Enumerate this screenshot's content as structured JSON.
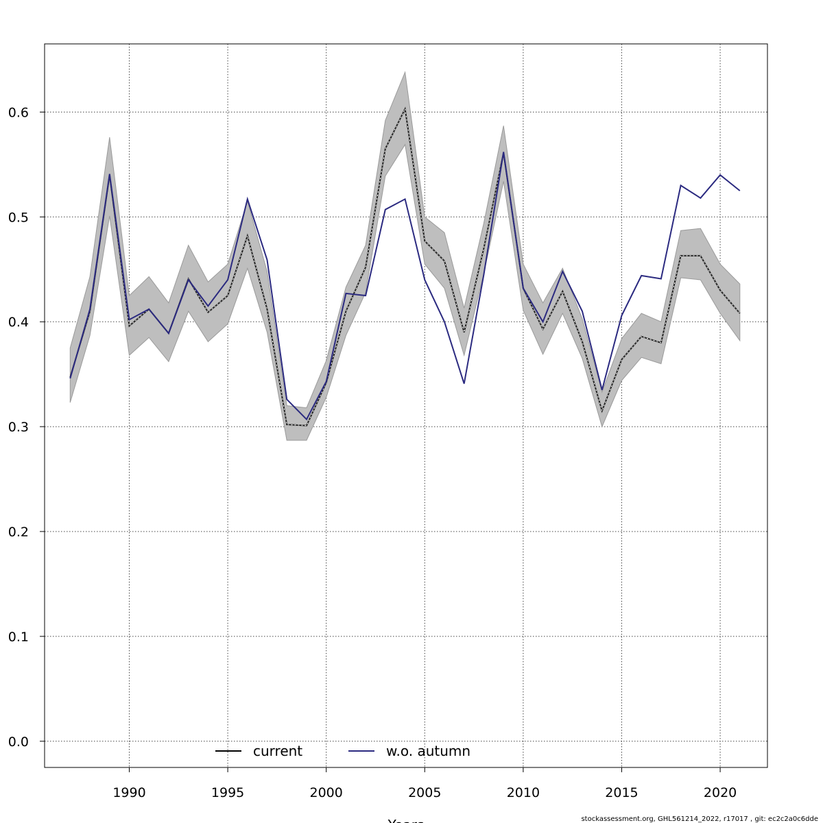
{
  "chart_data": {
    "type": "line",
    "title": "",
    "xlabel": "Years",
    "ylabel": "",
    "xlim": [
      1985.7,
      2022.4
    ],
    "ylim": [
      -0.025,
      0.665
    ],
    "xticks": [
      1990,
      1995,
      2000,
      2005,
      2010,
      2015,
      2020
    ],
    "yticks": [
      0.0,
      0.1,
      0.2,
      0.3,
      0.4,
      0.5,
      0.6
    ],
    "ytick_labels": [
      "0.0",
      "0.1",
      "0.2",
      "0.3",
      "0.4",
      "0.5",
      "0.6"
    ],
    "grid": true,
    "legend_position": "bottom-center",
    "x": [
      1987,
      1988,
      1989,
      1990,
      1991,
      1992,
      1993,
      1994,
      1995,
      1996,
      1997,
      1998,
      1999,
      2000,
      2001,
      2002,
      2003,
      2004,
      2005,
      2006,
      2007,
      2008,
      2009,
      2010,
      2011,
      2012,
      2013,
      2014,
      2015,
      2016,
      2017,
      2018,
      2019,
      2020,
      2021
    ],
    "series": [
      {
        "name": "current",
        "color": "#222222",
        "values": [
          0.347,
          0.41,
          0.54,
          0.396,
          0.412,
          0.389,
          0.441,
          0.409,
          0.425,
          0.482,
          0.412,
          0.302,
          0.301,
          0.342,
          0.41,
          0.452,
          0.565,
          0.603,
          0.477,
          0.458,
          0.39,
          0.47,
          0.561,
          0.432,
          0.393,
          0.429,
          0.381,
          0.315,
          0.364,
          0.386,
          0.38,
          0.463,
          0.463,
          0.43,
          0.408
        ],
        "lower": [
          0.323,
          0.387,
          0.501,
          0.368,
          0.385,
          0.362,
          0.41,
          0.381,
          0.398,
          0.451,
          0.39,
          0.287,
          0.287,
          0.328,
          0.387,
          0.428,
          0.539,
          0.569,
          0.455,
          0.432,
          0.368,
          0.446,
          0.534,
          0.411,
          0.369,
          0.408,
          0.365,
          0.3,
          0.344,
          0.366,
          0.36,
          0.442,
          0.44,
          0.408,
          0.382
        ],
        "upper": [
          0.375,
          0.443,
          0.576,
          0.425,
          0.443,
          0.418,
          0.473,
          0.438,
          0.455,
          0.515,
          0.448,
          0.32,
          0.318,
          0.363,
          0.433,
          0.473,
          0.592,
          0.638,
          0.5,
          0.485,
          0.413,
          0.494,
          0.587,
          0.455,
          0.418,
          0.451,
          0.403,
          0.333,
          0.384,
          0.408,
          0.4,
          0.487,
          0.489,
          0.455,
          0.436
        ]
      },
      {
        "name": "w.o. autumn",
        "color": "#2b2a80",
        "values": [
          0.346,
          0.412,
          0.541,
          0.402,
          0.412,
          0.389,
          0.44,
          0.415,
          0.44,
          0.517,
          0.459,
          0.326,
          0.307,
          0.343,
          0.427,
          0.425,
          0.507,
          0.517,
          0.44,
          0.4,
          0.341,
          0.445,
          0.562,
          0.432,
          0.4,
          0.448,
          0.41,
          0.335,
          0.406,
          0.444,
          0.441,
          0.53,
          0.518,
          0.54,
          0.525
        ]
      }
    ],
    "band_color": "#bebebe"
  },
  "footnote": "stockassessment.org, GHL561214_2022, r17017 , git: ec2c2a0c6dde"
}
